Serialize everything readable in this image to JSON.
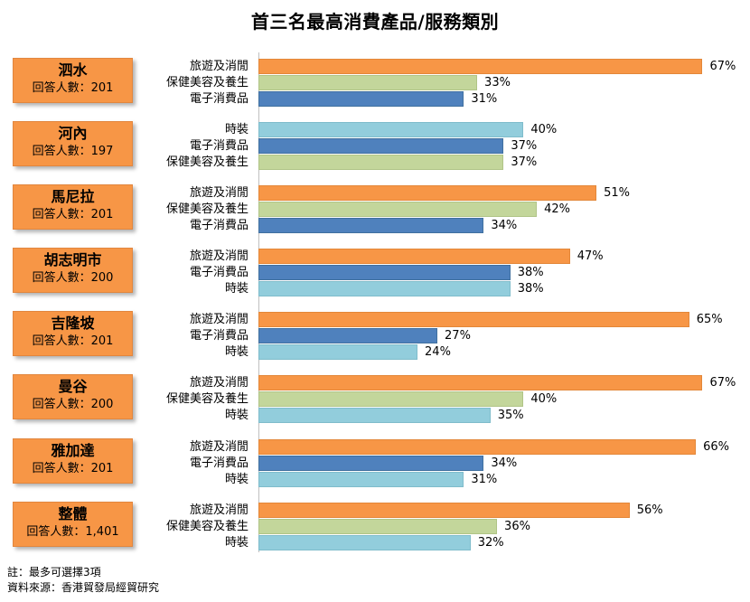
{
  "title": "首三名最高消費產品/服務類別",
  "footnotes": {
    "note": "註：最多可選擇3項",
    "source": "資料來源：香港貿發局經貿研究"
  },
  "colors": {
    "旅遊及消閒": "#f79646",
    "保健美容及養生": "#c3d69b",
    "電子消費品": "#4f81bd",
    "時裝": "#92cddc"
  },
  "chart_data": {
    "type": "bar",
    "orientation": "horizontal",
    "unit": "%",
    "xlim": [
      0,
      70
    ],
    "groups": [
      {
        "city": "泗水",
        "respondents": "回答人數：201",
        "bars": [
          {
            "category": "旅遊及消閒",
            "value": 67,
            "label": "67%"
          },
          {
            "category": "保健美容及養生",
            "value": 33,
            "label": "33%"
          },
          {
            "category": "電子消費品",
            "value": 31,
            "label": "31%"
          }
        ]
      },
      {
        "city": "河內",
        "respondents": "回答人數：197",
        "bars": [
          {
            "category": "時裝",
            "value": 40,
            "label": "40%"
          },
          {
            "category": "電子消費品",
            "value": 37,
            "label": "37%"
          },
          {
            "category": "保健美容及養生",
            "value": 37,
            "label": "37%"
          }
        ]
      },
      {
        "city": "馬尼拉",
        "respondents": "回答人數：201",
        "bars": [
          {
            "category": "旅遊及消閒",
            "value": 51,
            "label": "51%"
          },
          {
            "category": "保健美容及養生",
            "value": 42,
            "label": "42%"
          },
          {
            "category": "電子消費品",
            "value": 34,
            "label": "34%"
          }
        ]
      },
      {
        "city": "胡志明市",
        "respondents": "回答人數：200",
        "bars": [
          {
            "category": "旅遊及消閒",
            "value": 47,
            "label": "47%"
          },
          {
            "category": "電子消費品",
            "value": 38,
            "label": "38%"
          },
          {
            "category": "時裝",
            "value": 38,
            "label": "38%"
          }
        ]
      },
      {
        "city": "吉隆坡",
        "respondents": "回答人數：201",
        "bars": [
          {
            "category": "旅遊及消閒",
            "value": 65,
            "label": "65%"
          },
          {
            "category": "電子消費品",
            "value": 27,
            "label": "27%"
          },
          {
            "category": "時裝",
            "value": 24,
            "label": "24%"
          }
        ]
      },
      {
        "city": "曼谷",
        "respondents": "回答人數：200",
        "bars": [
          {
            "category": "旅遊及消閒",
            "value": 67,
            "label": "67%"
          },
          {
            "category": "保健美容及養生",
            "value": 40,
            "label": "40%"
          },
          {
            "category": "時裝",
            "value": 35,
            "label": "35%"
          }
        ]
      },
      {
        "city": "雅加達",
        "respondents": "回答人數：201",
        "bars": [
          {
            "category": "旅遊及消閒",
            "value": 66,
            "label": "66%"
          },
          {
            "category": "電子消費品",
            "value": 34,
            "label": "34%"
          },
          {
            "category": "時裝",
            "value": 31,
            "label": "31%"
          }
        ]
      },
      {
        "city": "整體",
        "respondents": "回答人數：1,401",
        "bars": [
          {
            "category": "旅遊及消閒",
            "value": 56,
            "label": "56%"
          },
          {
            "category": "保健美容及養生",
            "value": 36,
            "label": "36%"
          },
          {
            "category": "時裝",
            "value": 32,
            "label": "32%"
          }
        ]
      }
    ]
  }
}
